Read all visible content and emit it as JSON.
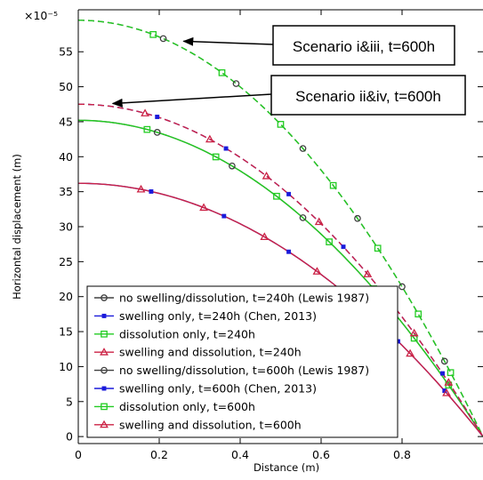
{
  "chart_data": {
    "type": "line",
    "xlabel": "Distance (m)",
    "ylabel": "Horizontal displacement (m)",
    "y_multiplier": "×10⁻⁵",
    "xlim": [
      0,
      1
    ],
    "ylim": [
      -1,
      61
    ],
    "x_ticks": [
      0,
      0.2,
      0.4,
      0.6,
      0.8
    ],
    "x_tick_labels": [
      "0",
      "0.2",
      "0.4",
      "0.6",
      "0.8"
    ],
    "y_ticks": [
      0,
      5,
      10,
      15,
      20,
      25,
      30,
      35,
      40,
      45,
      50,
      55
    ],
    "y_tick_labels": [
      "0",
      "5",
      "10",
      "15",
      "20",
      "25",
      "30",
      "35",
      "40",
      "45",
      "50",
      "55"
    ],
    "grid": false,
    "legend_position": "bottom-left",
    "series": [
      {
        "name": "no swelling/dissolution, t=240h (Lewis 1987)",
        "color": "#404040",
        "marker": "circle",
        "dash": "solid",
        "y0": 45.2,
        "y1": 0,
        "markers_x": [
          0.195,
          0.38,
          0.555
        ]
      },
      {
        "name": "swelling only, t=240h (Chen, 2013)",
        "color": "#1a1adb",
        "marker": "square-filled",
        "dash": "solid",
        "y0": 36.2,
        "y1": 0,
        "markers_x": [
          0.18,
          0.36,
          0.52,
          0.67,
          0.79,
          0.905
        ]
      },
      {
        "name": "dissolution only, t=240h",
        "color": "#22cc22",
        "marker": "square",
        "dash": "solid",
        "y0": 45.2,
        "y1": 0,
        "markers_x": [
          0.17,
          0.34,
          0.49,
          0.62,
          0.73,
          0.83,
          0.915
        ]
      },
      {
        "name": "swelling and dissolution, t=240h",
        "color": "#cc2244",
        "marker": "triangle",
        "dash": "solid",
        "y0": 36.2,
        "y1": 0,
        "markers_x": [
          0.155,
          0.31,
          0.46,
          0.59,
          0.71,
          0.82,
          0.91
        ]
      },
      {
        "name": "no swelling/dissolution, t=600h (Lewis 1987)",
        "color": "#404040",
        "marker": "circle",
        "dash": "dashed",
        "y0": 59.5,
        "y1": 0,
        "markers_x": [
          0.21,
          0.39,
          0.555,
          0.69,
          0.8,
          0.905
        ]
      },
      {
        "name": "swelling only, t=600h (Chen, 2013)",
        "color": "#1a1adb",
        "marker": "square-filled",
        "dash": "dashed",
        "y0": 47.5,
        "y1": 0,
        "markers_x": [
          0.195,
          0.365,
          0.52,
          0.655,
          0.775,
          0.9
        ]
      },
      {
        "name": "dissolution only, t=600h",
        "color": "#22cc22",
        "marker": "square",
        "dash": "dashed",
        "y0": 59.5,
        "y1": 0,
        "markers_x": [
          0.185,
          0.355,
          0.5,
          0.63,
          0.74,
          0.84,
          0.92
        ]
      },
      {
        "name": "swelling and dissolution, t=600h",
        "color": "#cc2244",
        "marker": "triangle",
        "dash": "dashed",
        "y0": 47.5,
        "y1": 0,
        "markers_x": [
          0.165,
          0.325,
          0.465,
          0.595,
          0.715,
          0.83,
          0.915
        ]
      }
    ],
    "annotations": [
      {
        "text": "Scenario i&iii, t=600h",
        "points_to": [
          0.26,
          56.5
        ]
      },
      {
        "text": "Scenario ii&iv, t=600h",
        "points_to": [
          0.085,
          47.6
        ]
      }
    ]
  }
}
